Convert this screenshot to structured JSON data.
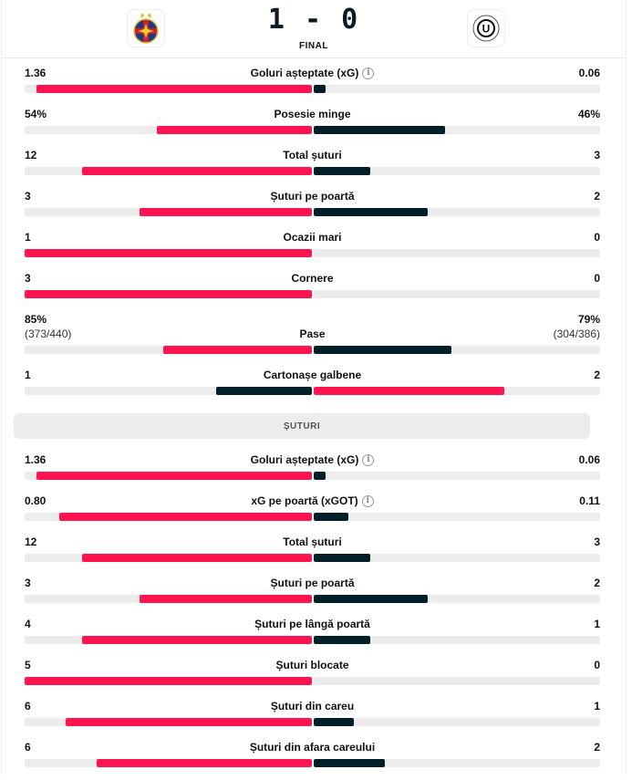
{
  "match": {
    "score": "1 - 0",
    "status": "FINAL",
    "home_logo": "fcsb-crest",
    "away_logo": "u-cluj-crest"
  },
  "colors": {
    "home": "#ff1450",
    "away": "#001f29",
    "track": "#ececec"
  },
  "general": [
    {
      "label": "Goluri așteptate (xG)",
      "home": "1.36",
      "away": "0.06",
      "hv": 1.36,
      "av": 0.06,
      "info": "i"
    },
    {
      "label": "Posesie minge",
      "home": "54%",
      "away": "46%",
      "hv": 54,
      "av": 46
    },
    {
      "label": "Total șuturi",
      "home": "12",
      "away": "3",
      "hv": 12,
      "av": 3
    },
    {
      "label": "Șuturi pe poartă",
      "home": "3",
      "away": "2",
      "hv": 3,
      "av": 2
    },
    {
      "label": "Ocazii mari",
      "home": "1",
      "away": "0",
      "hv": 1,
      "av": 0
    },
    {
      "label": "Cornere",
      "home": "3",
      "away": "0",
      "hv": 3,
      "av": 0
    },
    {
      "label": "Pase",
      "home": "85%",
      "away": "79%",
      "home_sub": "(373/440)",
      "away_sub": "(304/386)",
      "hv": 85,
      "av": 79
    },
    {
      "label": "Cartonașe galbene",
      "home": "1",
      "away": "2",
      "hv": 1,
      "av": 2,
      "swap": true
    }
  ],
  "section_title": "ȘUTURI",
  "shots": [
    {
      "label": "Goluri așteptate (xG)",
      "home": "1.36",
      "away": "0.06",
      "hv": 1.36,
      "av": 0.06,
      "info": "i"
    },
    {
      "label": "xG pe poartă (xGOT)",
      "home": "0.80",
      "away": "0.11",
      "hv": 0.8,
      "av": 0.11,
      "info": "i"
    },
    {
      "label": "Total șuturi",
      "home": "12",
      "away": "3",
      "hv": 12,
      "av": 3
    },
    {
      "label": "Șuturi pe poartă",
      "home": "3",
      "away": "2",
      "hv": 3,
      "av": 2
    },
    {
      "label": "Șuturi pe lângă poartă",
      "home": "4",
      "away": "1",
      "hv": 4,
      "av": 1
    },
    {
      "label": "Șuturi blocate",
      "home": "5",
      "away": "0",
      "hv": 5,
      "av": 0
    },
    {
      "label": "Șuturi din careu",
      "home": "6",
      "away": "1",
      "hv": 6,
      "av": 1
    },
    {
      "label": "Șuturi din afara careului",
      "home": "6",
      "away": "2",
      "hv": 6,
      "av": 2
    }
  ]
}
